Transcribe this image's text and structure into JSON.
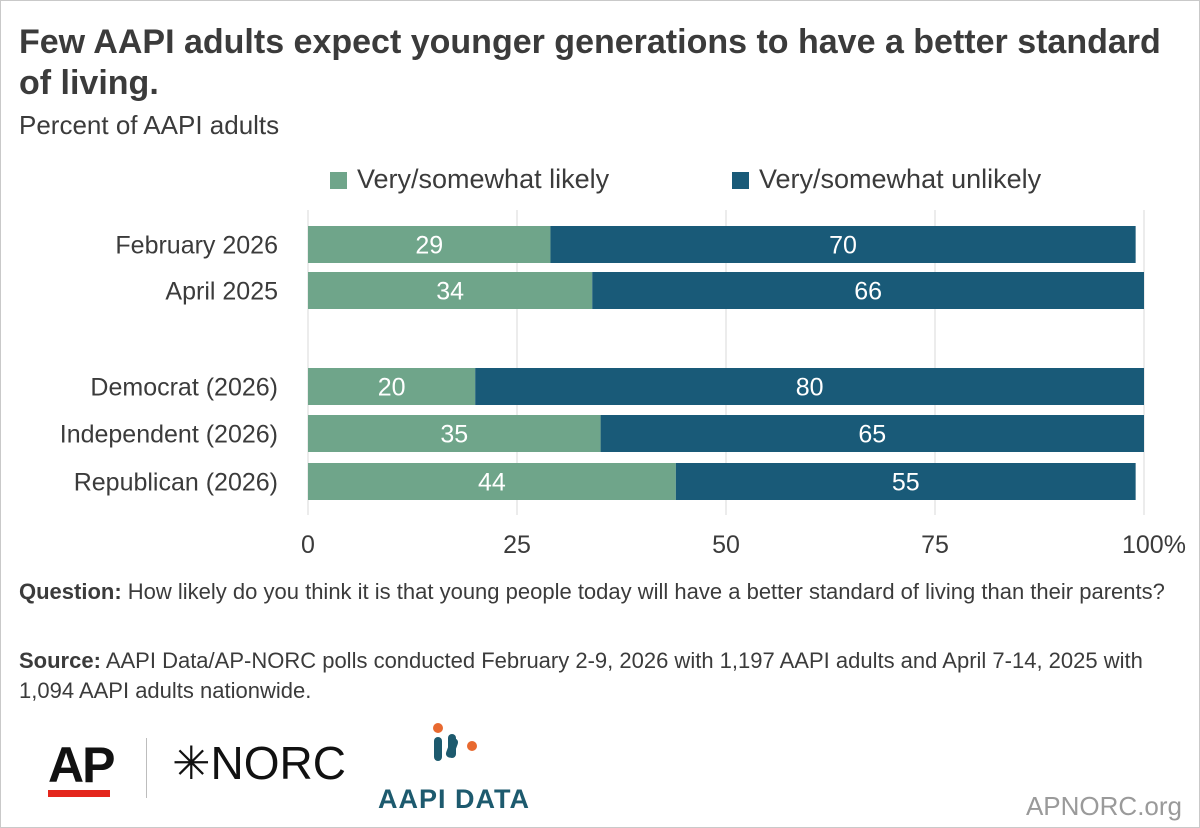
{
  "header": {
    "title": "Few AAPI adults expect younger generations to have a better standard of living.",
    "subtitle": "Percent of AAPI adults"
  },
  "chart_data": {
    "type": "bar",
    "orientation": "horizontal",
    "stacked": true,
    "categories": [
      "February 2026",
      "April 2025",
      "Democrat (2026)",
      "Independent (2026)",
      "Republican (2026)"
    ],
    "series": [
      {
        "name": "Very/somewhat likely",
        "color": "#6fa58a",
        "values": [
          29,
          34,
          20,
          35,
          44
        ]
      },
      {
        "name": "Very/somewhat unlikely",
        "color": "#195a78",
        "values": [
          70,
          66,
          80,
          65,
          55
        ]
      }
    ],
    "xticks": [
      "0",
      "25",
      "50",
      "75",
      "100%"
    ],
    "xlim": [
      0,
      100
    ],
    "grid": true,
    "legend": "top"
  },
  "footer": {
    "question_label": "Question:",
    "question_text": " How likely do you think it is that young people today will have a better standard of living than their parents?",
    "source_label": "Source:",
    "source_text": " AAPI Data/AP-NORC polls conducted February 2-9, 2026 with 1,197 AAPI adults and April 7-14, 2025 with 1,094 AAPI adults nationwide."
  },
  "logos": {
    "ap": "AP",
    "norc": "NORC",
    "aapi": "AAPI DATA",
    "site": "APNORC.org"
  }
}
